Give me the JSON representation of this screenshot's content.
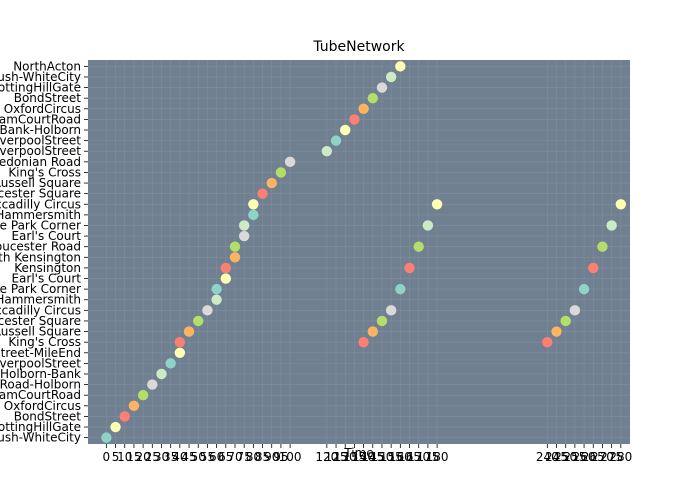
{
  "chart_data": {
    "type": "scatter",
    "title": "TubeNetwork",
    "xlabel": "Time",
    "ylabel": "",
    "grid": true,
    "background": "#708090",
    "xlim": [
      -10,
      285
    ],
    "x_ticks": [
      0,
      5,
      10,
      15,
      20,
      25,
      30,
      35,
      40,
      45,
      50,
      55,
      60,
      65,
      70,
      75,
      80,
      85,
      90,
      95,
      100,
      120,
      125,
      130,
      135,
      140,
      145,
      150,
      155,
      160,
      165,
      170,
      175,
      180,
      240,
      245,
      250,
      255,
      260,
      265,
      270,
      275,
      280
    ],
    "y_labels": [
      "ShepherdsBush-WhiteCity",
      "NottingHillGate",
      "BondStreet",
      "OxfordCircus",
      "TottenhamCourtRoad",
      "TottenhamCourtRoad-Holborn",
      "Holborn-Bank",
      "LiverpoolStreet",
      "LiverpoolStreet-MileEnd",
      "King's Cross",
      "Russell Square",
      "Leicester Square",
      "Piccadilly Circus",
      "Hammersmith",
      "Hyde Park Corner",
      "Earl's Court",
      "Kensington",
      "South Kensington",
      "Gloucester Road",
      "Earl's Court",
      "Hyde Park Corner",
      "Hammersmith",
      "Piccadilly Circus",
      "Leicester Square",
      "Russell Square",
      "King's Cross",
      "Caledonian Road",
      "LiverpoolStreet",
      "Bank-LiverpoolStreet",
      "Bank-Holborn",
      "TottenhamCourtRoad",
      "OxfordCircus",
      "BondStreet",
      "NottingHillGate",
      "ShepherdsBush-WhiteCity",
      "NorthActon"
    ],
    "palette": [
      "#8dd3c7",
      "#ffffb3",
      "#fb8072",
      "#fdb462",
      "#b3de69",
      "#d9d9d9",
      "#ccebc5",
      "#bebada"
    ],
    "series": [
      {
        "values": [
          {
            "x": 0,
            "y": 0,
            "c": "#8dd3c7"
          },
          {
            "x": 5,
            "y": 1,
            "c": "#ffffb3"
          },
          {
            "x": 10,
            "y": 2,
            "c": "#fb8072"
          },
          {
            "x": 15,
            "y": 3,
            "c": "#fdb462"
          },
          {
            "x": 20,
            "y": 4,
            "c": "#b3de69"
          },
          {
            "x": 25,
            "y": 5,
            "c": "#d9d9d9"
          },
          {
            "x": 30,
            "y": 6,
            "c": "#ccebc5"
          },
          {
            "x": 35,
            "y": 7,
            "c": "#8dd3c7"
          },
          {
            "x": 40,
            "y": 8,
            "c": "#ffffb3"
          },
          {
            "x": 40,
            "y": 9,
            "c": "#fb8072"
          },
          {
            "x": 45,
            "y": 10,
            "c": "#fdb462"
          },
          {
            "x": 50,
            "y": 11,
            "c": "#b3de69"
          },
          {
            "x": 55,
            "y": 12,
            "c": "#d9d9d9"
          },
          {
            "x": 60,
            "y": 13,
            "c": "#ccebc5"
          },
          {
            "x": 60,
            "y": 14,
            "c": "#8dd3c7"
          },
          {
            "x": 65,
            "y": 15,
            "c": "#ffffb3"
          },
          {
            "x": 65,
            "y": 16,
            "c": "#fb8072"
          },
          {
            "x": 70,
            "y": 17,
            "c": "#fdb462"
          },
          {
            "x": 70,
            "y": 18,
            "c": "#b3de69"
          },
          {
            "x": 75,
            "y": 19,
            "c": "#d9d9d9"
          },
          {
            "x": 75,
            "y": 20,
            "c": "#ccebc5"
          },
          {
            "x": 80,
            "y": 21,
            "c": "#8dd3c7"
          },
          {
            "x": 80,
            "y": 22,
            "c": "#ffffb3"
          },
          {
            "x": 85,
            "y": 23,
            "c": "#fb8072"
          },
          {
            "x": 90,
            "y": 24,
            "c": "#fdb462"
          },
          {
            "x": 95,
            "y": 25,
            "c": "#b3de69"
          },
          {
            "x": 100,
            "y": 26,
            "c": "#d9d9d9"
          },
          {
            "x": 120,
            "y": 27,
            "c": "#ccebc5"
          },
          {
            "x": 125,
            "y": 28,
            "c": "#8dd3c7"
          },
          {
            "x": 130,
            "y": 29,
            "c": "#ffffb3"
          },
          {
            "x": 135,
            "y": 30,
            "c": "#fb8072"
          },
          {
            "x": 140,
            "y": 31,
            "c": "#fdb462"
          },
          {
            "x": 145,
            "y": 32,
            "c": "#b3de69"
          },
          {
            "x": 150,
            "y": 33,
            "c": "#d9d9d9"
          },
          {
            "x": 155,
            "y": 34,
            "c": "#ccebc5"
          },
          {
            "x": 160,
            "y": 35,
            "c": "#ffffb3"
          },
          {
            "x": 140,
            "y": 9,
            "c": "#fb8072"
          },
          {
            "x": 145,
            "y": 10,
            "c": "#fdb462"
          },
          {
            "x": 150,
            "y": 11,
            "c": "#b3de69"
          },
          {
            "x": 155,
            "y": 12,
            "c": "#d9d9d9"
          },
          {
            "x": 160,
            "y": 14,
            "c": "#8dd3c7"
          },
          {
            "x": 165,
            "y": 16,
            "c": "#fb8072"
          },
          {
            "x": 170,
            "y": 18,
            "c": "#b3de69"
          },
          {
            "x": 175,
            "y": 20,
            "c": "#ccebc5"
          },
          {
            "x": 180,
            "y": 22,
            "c": "#ffffb3"
          },
          {
            "x": 240,
            "y": 9,
            "c": "#fb8072"
          },
          {
            "x": 245,
            "y": 10,
            "c": "#fdb462"
          },
          {
            "x": 250,
            "y": 11,
            "c": "#b3de69"
          },
          {
            "x": 255,
            "y": 12,
            "c": "#d9d9d9"
          },
          {
            "x": 260,
            "y": 14,
            "c": "#8dd3c7"
          },
          {
            "x": 265,
            "y": 16,
            "c": "#fb8072"
          },
          {
            "x": 270,
            "y": 18,
            "c": "#b3de69"
          },
          {
            "x": 275,
            "y": 20,
            "c": "#ccebc5"
          },
          {
            "x": 280,
            "y": 22,
            "c": "#ffffb3"
          }
        ]
      }
    ]
  }
}
